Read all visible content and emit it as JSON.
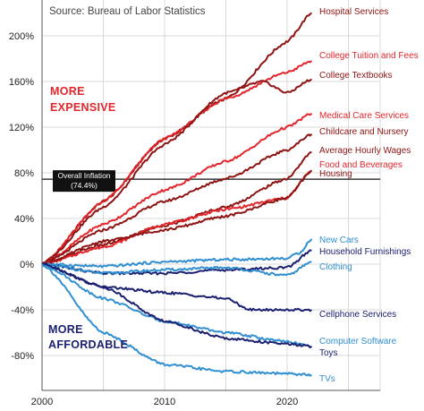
{
  "chart_data": {
    "type": "line",
    "source": "Source: Bureau of Labor Statistics",
    "xlim": [
      2000,
      2022.5
    ],
    "ylim": [
      -100,
      225
    ],
    "x_ticks": [
      2000,
      2010,
      2020
    ],
    "x_tick_labels": [
      "2000",
      "2010",
      "2020"
    ],
    "y_ticks": [
      -80,
      -40,
      0,
      40,
      80,
      120,
      160,
      200
    ],
    "y_tick_labels": [
      "-80%",
      "-40%",
      "0%",
      "40%",
      "80%",
      "120%",
      "160%",
      "200%"
    ],
    "grid": true,
    "annotations": {
      "more_expensive": [
        "MORE",
        "EXPENSIVE"
      ],
      "more_affordable": [
        "MORE",
        "AFFORDABLE"
      ],
      "overall_inflation": {
        "label": "Overall Inflation",
        "value_label": "(74.4%)",
        "value": 74.4
      }
    },
    "colors": {
      "dark_red": "#8e1313",
      "red": "#e3262c",
      "navy": "#1b2070",
      "blue": "#2f8fd1",
      "grid": "#d9d9d9"
    },
    "series": [
      {
        "name": "Hospital Services",
        "color": "#8e1313",
        "x": [
          2000,
          2005,
          2010,
          2015,
          2020,
          2022
        ],
        "values": [
          0,
          55,
          110,
          145,
          195,
          220
        ]
      },
      {
        "name": "College Tuition and Fees",
        "color": "#e3262c",
        "x": [
          2000,
          2005,
          2010,
          2015,
          2020,
          2022
        ],
        "values": [
          0,
          55,
          110,
          145,
          168,
          178
        ]
      },
      {
        "name": "College Textbooks",
        "color": "#8e1313",
        "x": [
          2000,
          2005,
          2010,
          2015,
          2018,
          2020,
          2022
        ],
        "values": [
          0,
          50,
          105,
          150,
          160,
          150,
          162
        ]
      },
      {
        "name": "Medical Care Services",
        "color": "#e3262c",
        "x": [
          2000,
          2005,
          2010,
          2015,
          2020,
          2022
        ],
        "values": [
          0,
          35,
          65,
          90,
          120,
          132
        ]
      },
      {
        "name": "Childcare and Nursery",
        "color": "#8e1313",
        "x": [
          2000,
          2005,
          2010,
          2015,
          2020,
          2022
        ],
        "values": [
          0,
          30,
          55,
          75,
          100,
          114
        ]
      },
      {
        "name": "Average Hourly Wages",
        "color": "#8e1313",
        "x": [
          2000,
          2005,
          2010,
          2015,
          2020,
          2022
        ],
        "values": [
          0,
          17,
          34,
          50,
          75,
          98
        ]
      },
      {
        "name": "Food and Beverages",
        "color": "#e3262c",
        "x": [
          2000,
          2005,
          2010,
          2015,
          2020,
          2022
        ],
        "values": [
          0,
          15,
          35,
          48,
          58,
          82
        ]
      },
      {
        "name": "Housing",
        "color": "#8e1313",
        "x": [
          2000,
          2005,
          2010,
          2015,
          2020,
          2022
        ],
        "values": [
          0,
          20,
          30,
          42,
          58,
          82
        ]
      },
      {
        "name": "New Cars",
        "color": "#2f8fd1",
        "x": [
          2000,
          2005,
          2010,
          2015,
          2020,
          2021,
          2022
        ],
        "values": [
          0,
          -2,
          2,
          4,
          5,
          10,
          22
        ]
      },
      {
        "name": "Household Furnishings",
        "color": "#1b2070",
        "x": [
          2000,
          2005,
          2010,
          2015,
          2020,
          2022
        ],
        "values": [
          0,
          -8,
          -8,
          -5,
          -3,
          12
        ]
      },
      {
        "name": "Clothing",
        "color": "#2f8fd1",
        "x": [
          2000,
          2005,
          2010,
          2015,
          2020,
          2022
        ],
        "values": [
          0,
          -8,
          -5,
          -3,
          -10,
          2
        ]
      },
      {
        "name": "Cellphone Services",
        "color": "#1b2070",
        "x": [
          2000,
          2005,
          2010,
          2015,
          2017,
          2020,
          2022
        ],
        "values": [
          0,
          -20,
          -25,
          -30,
          -40,
          -40,
          -40
        ]
      },
      {
        "name": "Computer Software",
        "color": "#2f8fd1",
        "x": [
          2000,
          2005,
          2010,
          2015,
          2020,
          2022
        ],
        "values": [
          0,
          -30,
          -50,
          -60,
          -68,
          -72
        ]
      },
      {
        "name": "Toys",
        "color": "#1b2070",
        "x": [
          2000,
          2005,
          2010,
          2015,
          2020,
          2022
        ],
        "values": [
          0,
          -20,
          -50,
          -65,
          -70,
          -72
        ]
      },
      {
        "name": "TVs",
        "color": "#2f8fd1",
        "x": [
          2000,
          2005,
          2010,
          2015,
          2020,
          2022
        ],
        "values": [
          0,
          -60,
          -88,
          -94,
          -96,
          -97
        ]
      }
    ]
  }
}
